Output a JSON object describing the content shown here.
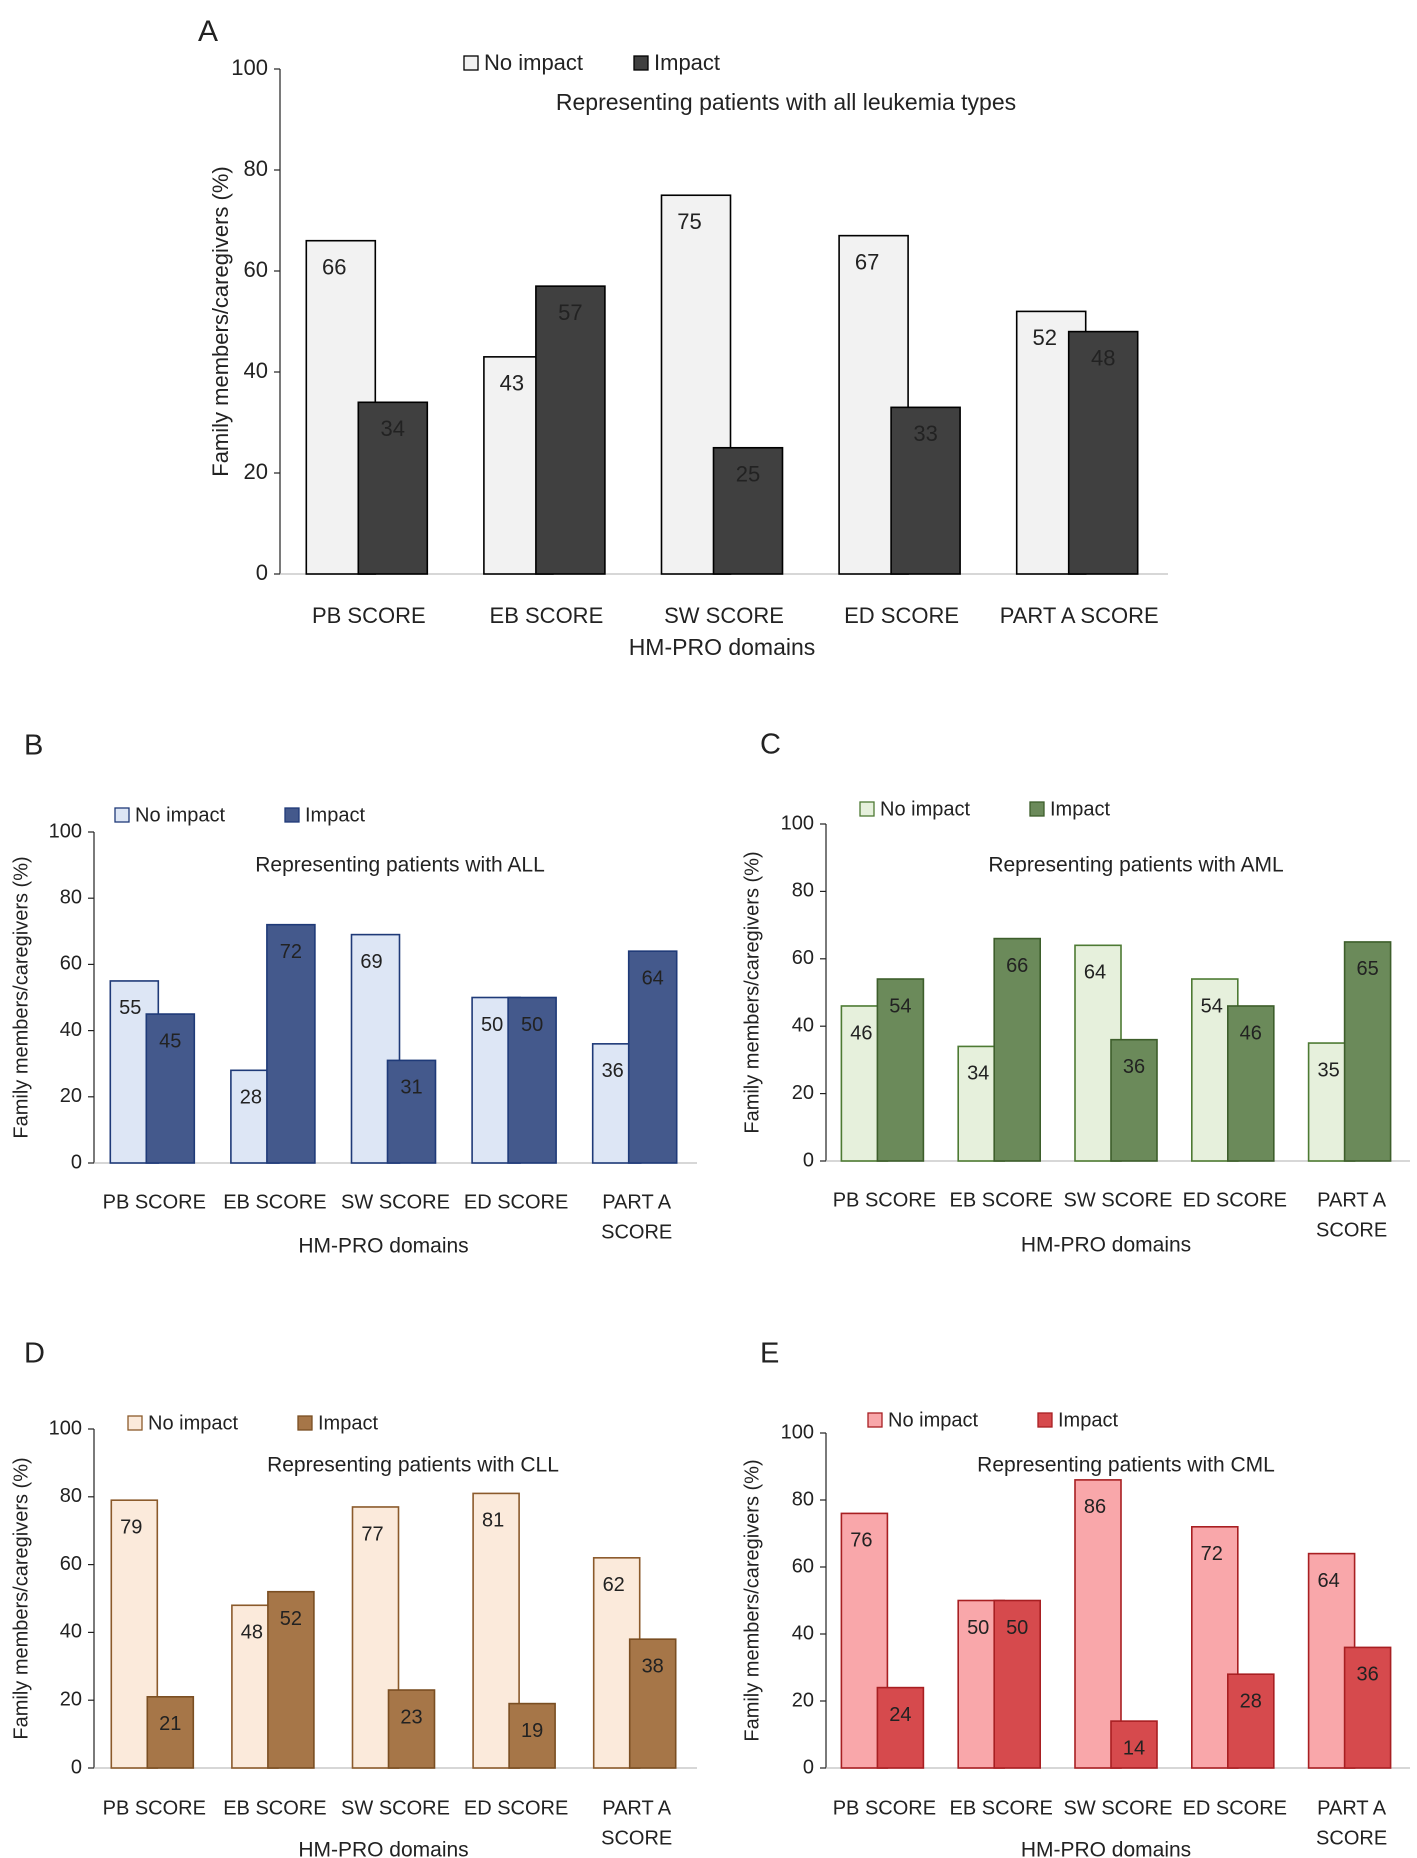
{
  "chart_data": [
    {
      "panel_label": "A",
      "type": "bar",
      "title": "Representing patients with all leukemia types",
      "xlabel": "HM-PRO domains",
      "ylabel": "Family members/caregivers (%)",
      "ylim": [
        0,
        100
      ],
      "yticks": [
        "0",
        "20",
        "40",
        "60",
        "80",
        "100"
      ],
      "grid": false,
      "legend_position": "top",
      "categories": [
        [
          "PB SCORE"
        ],
        [
          "EB  SCORE"
        ],
        [
          "SW  SCORE"
        ],
        [
          "ED  SCORE"
        ],
        [
          "PART  A SCORE"
        ]
      ],
      "series": [
        {
          "name": "No impact",
          "values": [
            66,
            43,
            75,
            67,
            52
          ],
          "labels": [
            "66",
            "43",
            "75",
            "67",
            "52"
          ]
        },
        {
          "name": "Impact",
          "values": [
            34,
            57,
            25,
            33,
            48
          ],
          "labels": [
            "34",
            "57",
            "25",
            "33",
            "48"
          ]
        }
      ],
      "colors": {
        "no_impact_fill": "#f2f2f2",
        "no_impact_stroke": "#000000",
        "impact_fill": "#404040",
        "impact_stroke": "#000000",
        "no_impact_text": "#222222",
        "impact_text": "#ffffff"
      }
    },
    {
      "panel_label": "B",
      "type": "bar",
      "title": "Representing patients with ALL",
      "xlabel": "HM-PRO domains",
      "ylabel": "Family members/caregivers (%)",
      "ylim": [
        0,
        100
      ],
      "yticks": [
        "0",
        "20",
        "40",
        "60",
        "80",
        "100"
      ],
      "grid": false,
      "legend_position": "top",
      "categories": [
        [
          "PB SCORE"
        ],
        [
          "EB SCORE"
        ],
        [
          "SW SCORE"
        ],
        [
          "ED SCORE"
        ],
        [
          "PART A",
          "SCORE"
        ]
      ],
      "series": [
        {
          "name": "No impact",
          "values": [
            55,
            28,
            69,
            50,
            36
          ],
          "labels": [
            "55",
            "28",
            "69",
            "50",
            "36"
          ]
        },
        {
          "name": "Impact",
          "values": [
            45,
            72,
            31,
            50,
            64
          ],
          "labels": [
            "45",
            "72",
            "31",
            "50",
            "64"
          ]
        }
      ],
      "colors": {
        "no_impact_fill": "#dde6f5",
        "no_impact_stroke": "#1f3a78",
        "impact_fill": "#44598c",
        "impact_stroke": "#1f3a78",
        "no_impact_text": "#1f3a78",
        "impact_text": "#ffffff"
      }
    },
    {
      "panel_label": "C",
      "type": "bar",
      "title": "Representing patients with AML",
      "xlabel": "HM-PRO domains",
      "ylabel": "Family members/caregivers (%)",
      "ylim": [
        0,
        100
      ],
      "yticks": [
        "0",
        "20",
        "40",
        "60",
        "80",
        "100"
      ],
      "grid": false,
      "legend_position": "top",
      "categories": [
        [
          "PB SCORE"
        ],
        [
          "EB SCORE"
        ],
        [
          "SW SCORE"
        ],
        [
          "ED SCORE"
        ],
        [
          "PART A",
          "SCORE"
        ]
      ],
      "series": [
        {
          "name": "No impact",
          "values": [
            46,
            34,
            64,
            54,
            35
          ],
          "labels": [
            "46",
            "34",
            "64",
            "54",
            "35"
          ]
        },
        {
          "name": "Impact",
          "values": [
            54,
            66,
            36,
            46,
            65
          ],
          "labels": [
            "54",
            "66",
            "36",
            "46",
            "65"
          ]
        }
      ],
      "colors": {
        "no_impact_fill": "#e6f0dc",
        "no_impact_stroke": "#4d7a33",
        "impact_fill": "#6b8a5a",
        "impact_stroke": "#3d5e2b",
        "no_impact_text": "#3d5e2b",
        "impact_text": "#ffffff"
      }
    },
    {
      "panel_label": "D",
      "type": "bar",
      "title": "Representing patients with CLL",
      "xlabel": "HM-PRO domains",
      "ylabel": "Family members/caregivers (%)",
      "ylim": [
        0,
        100
      ],
      "yticks": [
        "0",
        "20",
        "40",
        "60",
        "80",
        "100"
      ],
      "grid": false,
      "legend_position": "top",
      "categories": [
        [
          "PB SCORE"
        ],
        [
          "EB SCORE"
        ],
        [
          "SW SCORE"
        ],
        [
          "ED SCORE"
        ],
        [
          "PART A",
          "SCORE"
        ]
      ],
      "series": [
        {
          "name": "No impact",
          "values": [
            79,
            48,
            77,
            81,
            62
          ],
          "labels": [
            "79",
            "48",
            "77",
            "81",
            "62"
          ]
        },
        {
          "name": "Impact",
          "values": [
            21,
            52,
            23,
            19,
            38
          ],
          "labels": [
            "21",
            "52",
            "23",
            "19",
            "38"
          ]
        }
      ],
      "colors": {
        "no_impact_fill": "#fbeadb",
        "no_impact_stroke": "#8b5a2b",
        "impact_fill": "#a67648",
        "impact_stroke": "#7a4e22",
        "no_impact_text": "#7a6a1c",
        "impact_text": "#ffffff"
      }
    },
    {
      "panel_label": "E",
      "type": "bar",
      "title": "Representing patients with CML",
      "xlabel": "HM-PRO domains",
      "ylabel": "Family members/caregivers (%)",
      "ylim": [
        0,
        100
      ],
      "yticks": [
        "0",
        "20",
        "40",
        "60",
        "80",
        "100"
      ],
      "grid": false,
      "legend_position": "top",
      "categories": [
        [
          "PB SCORE"
        ],
        [
          "EB SCORE"
        ],
        [
          "SW SCORE"
        ],
        [
          "ED SCORE"
        ],
        [
          "PART A",
          "SCORE"
        ]
      ],
      "series": [
        {
          "name": "No impact",
          "values": [
            76,
            50,
            86,
            72,
            64
          ],
          "labels": [
            "76",
            "50",
            "86",
            "72",
            "64"
          ]
        },
        {
          "name": "Impact",
          "values": [
            24,
            50,
            14,
            28,
            36
          ],
          "labels": [
            "24",
            "50",
            "14",
            "28",
            "36"
          ]
        }
      ],
      "colors": {
        "no_impact_fill": "#f9a7aa",
        "no_impact_stroke": "#a81f22",
        "impact_fill": "#d64a4d",
        "impact_stroke": "#a81f22",
        "no_impact_text": "#7a1214",
        "impact_text": "#ffffff"
      }
    }
  ]
}
